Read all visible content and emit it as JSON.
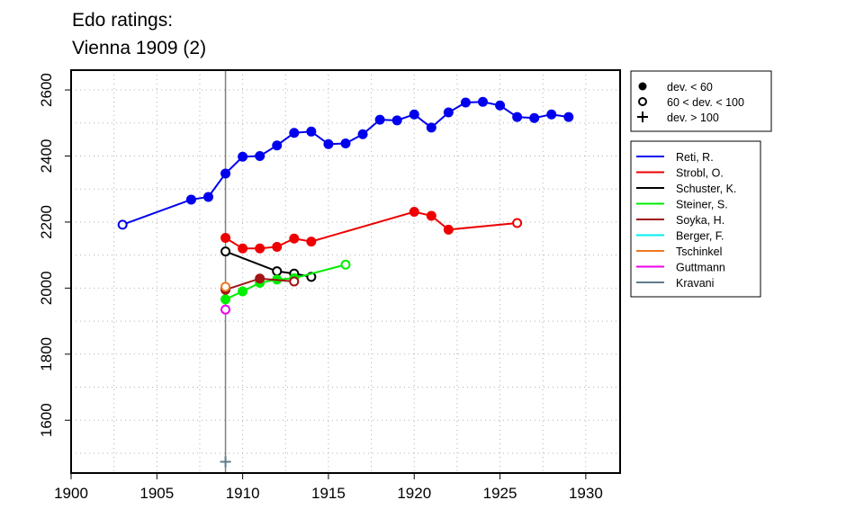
{
  "chart_data": {
    "type": "line",
    "title": [
      "Edo ratings:",
      "Vienna 1909 (2)"
    ],
    "xlabel": "",
    "ylabel": "",
    "xlim": [
      1900,
      1932
    ],
    "ylim": [
      1440,
      2660
    ],
    "x_ticks": [
      1900,
      1905,
      1910,
      1915,
      1920,
      1925,
      1930
    ],
    "y_ticks": [
      1600,
      1800,
      2000,
      2200,
      2400,
      2600
    ],
    "grid": true,
    "reference_line_x": 1909,
    "marker_legend": [
      {
        "marker": "filled-circle",
        "label": "dev. < 60"
      },
      {
        "marker": "open-circle",
        "label": "60 < dev. < 100"
      },
      {
        "marker": "plus",
        "label": "dev. > 100"
      }
    ],
    "legend_placement": "right",
    "series": [
      {
        "name": "Reti, R.",
        "color": "#0000ee",
        "points": [
          {
            "x": 1903,
            "y": 2192,
            "m": "open"
          },
          {
            "x": 1907,
            "y": 2268,
            "m": "filled"
          },
          {
            "x": 1908,
            "y": 2276,
            "m": "filled"
          },
          {
            "x": 1909,
            "y": 2347,
            "m": "filled"
          },
          {
            "x": 1910,
            "y": 2398,
            "m": "filled"
          },
          {
            "x": 1911,
            "y": 2400,
            "m": "filled"
          },
          {
            "x": 1912,
            "y": 2432,
            "m": "filled"
          },
          {
            "x": 1913,
            "y": 2470,
            "m": "filled"
          },
          {
            "x": 1914,
            "y": 2474,
            "m": "filled"
          },
          {
            "x": 1915,
            "y": 2436,
            "m": "filled"
          },
          {
            "x": 1916,
            "y": 2438,
            "m": "filled"
          },
          {
            "x": 1917,
            "y": 2466,
            "m": "filled"
          },
          {
            "x": 1918,
            "y": 2510,
            "m": "filled"
          },
          {
            "x": 1919,
            "y": 2508,
            "m": "filled"
          },
          {
            "x": 1920,
            "y": 2526,
            "m": "filled"
          },
          {
            "x": 1921,
            "y": 2486,
            "m": "filled"
          },
          {
            "x": 1922,
            "y": 2532,
            "m": "filled"
          },
          {
            "x": 1923,
            "y": 2562,
            "m": "filled"
          },
          {
            "x": 1924,
            "y": 2564,
            "m": "filled"
          },
          {
            "x": 1925,
            "y": 2553,
            "m": "filled"
          },
          {
            "x": 1926,
            "y": 2518,
            "m": "filled"
          },
          {
            "x": 1927,
            "y": 2515,
            "m": "filled"
          },
          {
            "x": 1928,
            "y": 2526,
            "m": "filled"
          },
          {
            "x": 1929,
            "y": 2518,
            "m": "filled"
          }
        ]
      },
      {
        "name": "Strobl, O.",
        "color": "#ee0000",
        "points": [
          {
            "x": 1909,
            "y": 2152,
            "m": "filled"
          },
          {
            "x": 1910,
            "y": 2120,
            "m": "filled"
          },
          {
            "x": 1911,
            "y": 2120,
            "m": "filled"
          },
          {
            "x": 1912,
            "y": 2125,
            "m": "filled"
          },
          {
            "x": 1913,
            "y": 2150,
            "m": "filled"
          },
          {
            "x": 1914,
            "y": 2141,
            "m": "filled"
          },
          {
            "x": 1920,
            "y": 2231,
            "m": "filled"
          },
          {
            "x": 1921,
            "y": 2219,
            "m": "filled"
          },
          {
            "x": 1922,
            "y": 2177,
            "m": "filled"
          },
          {
            "x": 1926,
            "y": 2197,
            "m": "open"
          }
        ]
      },
      {
        "name": "Schuster, K.",
        "color": "#000000",
        "points": [
          {
            "x": 1909,
            "y": 2111,
            "m": "open"
          },
          {
            "x": 1912,
            "y": 2051,
            "m": "open"
          },
          {
            "x": 1913,
            "y": 2044,
            "m": "open"
          },
          {
            "x": 1914,
            "y": 2034,
            "m": "open"
          }
        ]
      },
      {
        "name": "Steiner, S.",
        "color": "#00ee00",
        "points": [
          {
            "x": 1909,
            "y": 1966,
            "m": "filled"
          },
          {
            "x": 1910,
            "y": 1990,
            "m": "filled"
          },
          {
            "x": 1911,
            "y": 2016,
            "m": "filled"
          },
          {
            "x": 1912,
            "y": 2026,
            "m": "filled"
          },
          {
            "x": 1913,
            "y": 2030,
            "m": "filled"
          },
          {
            "x": 1916,
            "y": 2071,
            "m": "open"
          }
        ]
      },
      {
        "name": "Soyka, H.",
        "color": "#a01414",
        "points": [
          {
            "x": 1909,
            "y": 1995,
            "m": "filled"
          },
          {
            "x": 1911,
            "y": 2029,
            "m": "filled"
          },
          {
            "x": 1913,
            "y": 2020,
            "m": "open"
          }
        ]
      },
      {
        "name": "Berger, F.",
        "color": "#00eeee",
        "points": []
      },
      {
        "name": "Tschinkel",
        "color": "#ee7722",
        "points": [
          {
            "x": 1909,
            "y": 2004,
            "m": "open"
          }
        ]
      },
      {
        "name": "Guttmann",
        "color": "#ee00ee",
        "points": [
          {
            "x": 1909,
            "y": 1935,
            "m": "open"
          }
        ]
      },
      {
        "name": "Kravani",
        "color": "#607b8b",
        "points": [
          {
            "x": 1909,
            "y": 1474,
            "m": "plus"
          }
        ]
      }
    ]
  }
}
